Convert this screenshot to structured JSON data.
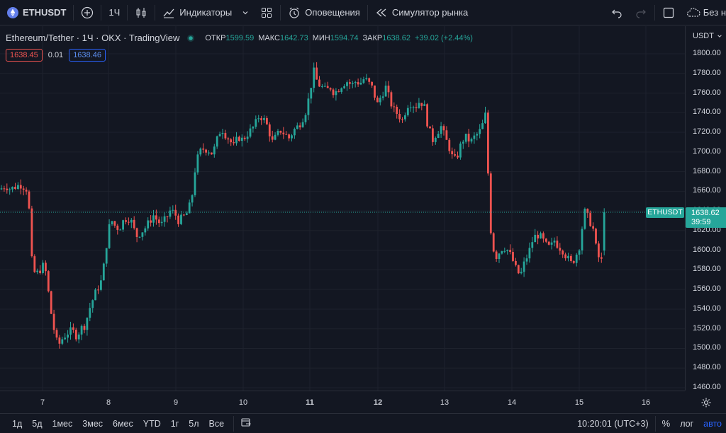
{
  "toolbar": {
    "symbol": "ETHUSDT",
    "interval": "1Ч",
    "indicators_label": "Индикаторы",
    "alerts_label": "Оповещения",
    "replay_label": "Симулятор рынка",
    "layout_label": "Без н"
  },
  "legend": {
    "title": "Ethereum/Tether · 1Ч · OKX · TradingView",
    "open_label": "ОТКР",
    "open": "1599.59",
    "high_label": "МАКС",
    "high": "1642.73",
    "low_label": "МИН",
    "low": "1594.74",
    "close_label": "ЗАКР",
    "close": "1638.62",
    "change": "+39.02 (+2.44%)"
  },
  "quotes": {
    "bid": "1638.45",
    "spread": "0.01",
    "ask": "1638.46"
  },
  "price_axis": {
    "currency": "USDT",
    "ticks": [
      "1800.00",
      "1780.00",
      "1760.00",
      "1740.00",
      "1720.00",
      "1700.00",
      "1680.00",
      "1660.00",
      "1640.00",
      "1620.00",
      "1600.00",
      "1580.00",
      "1560.00",
      "1540.00",
      "1520.00",
      "1500.00",
      "1480.00",
      "1460.00"
    ],
    "last_symbol": "ETHUSDT",
    "last_price": "1638.62",
    "countdown": "39:59"
  },
  "time_axis": {
    "ticks": [
      {
        "label": "7",
        "bold": false
      },
      {
        "label": "8",
        "bold": false
      },
      {
        "label": "9",
        "bold": false
      },
      {
        "label": "10",
        "bold": false
      },
      {
        "label": "11",
        "bold": true
      },
      {
        "label": "12",
        "bold": true
      },
      {
        "label": "13",
        "bold": false
      },
      {
        "label": "14",
        "bold": false
      },
      {
        "label": "15",
        "bold": false
      },
      {
        "label": "16",
        "bold": false
      }
    ]
  },
  "bottom_bar": {
    "ranges": [
      "1д",
      "5д",
      "1мес",
      "3мес",
      "6мес",
      "YTD",
      "1г",
      "5л",
      "Все"
    ],
    "clock": "10:20:01 (UTC+3)",
    "percent": "%",
    "log": "лог",
    "auto": "авто"
  },
  "colors": {
    "up": "#26a69a",
    "down": "#ef5350",
    "bg": "#131722",
    "accent": "#2962ff"
  },
  "chart_data": {
    "type": "candlestick",
    "symbol": "ETHUSDT",
    "interval": "1h",
    "ylim": [
      1455,
      1815
    ],
    "x_ticks": [
      "7",
      "8",
      "9",
      "10",
      "11",
      "12",
      "13",
      "14",
      "15",
      "16"
    ],
    "close_path": [
      {
        "x": 0,
        "y": 1662
      },
      {
        "x": 8,
        "y": 1666
      },
      {
        "x": 15,
        "y": 1662
      },
      {
        "x": 22,
        "y": 1665
      },
      {
        "x": 30,
        "y": 1667
      },
      {
        "x": 38,
        "y": 1662
      },
      {
        "x": 42,
        "y": 1634
      },
      {
        "x": 45,
        "y": 1588
      },
      {
        "x": 50,
        "y": 1574
      },
      {
        "x": 56,
        "y": 1580
      },
      {
        "x": 62,
        "y": 1585
      },
      {
        "x": 66,
        "y": 1573
      },
      {
        "x": 70,
        "y": 1545
      },
      {
        "x": 74,
        "y": 1528
      },
      {
        "x": 78,
        "y": 1512
      },
      {
        "x": 82,
        "y": 1502
      },
      {
        "x": 86,
        "y": 1508
      },
      {
        "x": 90,
        "y": 1512
      },
      {
        "x": 95,
        "y": 1516
      },
      {
        "x": 102,
        "y": 1518
      },
      {
        "x": 108,
        "y": 1513
      },
      {
        "x": 114,
        "y": 1520
      },
      {
        "x": 120,
        "y": 1524
      },
      {
        "x": 126,
        "y": 1540
      },
      {
        "x": 132,
        "y": 1552
      },
      {
        "x": 138,
        "y": 1562
      },
      {
        "x": 144,
        "y": 1570
      },
      {
        "x": 150,
        "y": 1605
      },
      {
        "x": 156,
        "y": 1632
      },
      {
        "x": 162,
        "y": 1625
      },
      {
        "x": 168,
        "y": 1622
      },
      {
        "x": 174,
        "y": 1630
      },
      {
        "x": 180,
        "y": 1634
      },
      {
        "x": 186,
        "y": 1628
      },
      {
        "x": 192,
        "y": 1614
      },
      {
        "x": 198,
        "y": 1618
      },
      {
        "x": 204,
        "y": 1622
      },
      {
        "x": 210,
        "y": 1628
      },
      {
        "x": 216,
        "y": 1636
      },
      {
        "x": 222,
        "y": 1630
      },
      {
        "x": 228,
        "y": 1626
      },
      {
        "x": 234,
        "y": 1632
      },
      {
        "x": 240,
        "y": 1640
      },
      {
        "x": 246,
        "y": 1638
      },
      {
        "x": 252,
        "y": 1630
      },
      {
        "x": 258,
        "y": 1633
      },
      {
        "x": 264,
        "y": 1638
      },
      {
        "x": 270,
        "y": 1650
      },
      {
        "x": 276,
        "y": 1688
      },
      {
        "x": 282,
        "y": 1700
      },
      {
        "x": 288,
        "y": 1704
      },
      {
        "x": 294,
        "y": 1702
      },
      {
        "x": 300,
        "y": 1698
      },
      {
        "x": 306,
        "y": 1712
      },
      {
        "x": 312,
        "y": 1725
      },
      {
        "x": 318,
        "y": 1718
      },
      {
        "x": 324,
        "y": 1712
      },
      {
        "x": 330,
        "y": 1705
      },
      {
        "x": 336,
        "y": 1716
      },
      {
        "x": 342,
        "y": 1712
      },
      {
        "x": 348,
        "y": 1718
      },
      {
        "x": 354,
        "y": 1722
      },
      {
        "x": 360,
        "y": 1728
      },
      {
        "x": 366,
        "y": 1738
      },
      {
        "x": 372,
        "y": 1733
      },
      {
        "x": 378,
        "y": 1725
      },
      {
        "x": 384,
        "y": 1710
      },
      {
        "x": 390,
        "y": 1716
      },
      {
        "x": 396,
        "y": 1722
      },
      {
        "x": 402,
        "y": 1718
      },
      {
        "x": 408,
        "y": 1714
      },
      {
        "x": 414,
        "y": 1722
      },
      {
        "x": 420,
        "y": 1726
      },
      {
        "x": 426,
        "y": 1733
      },
      {
        "x": 432,
        "y": 1743
      },
      {
        "x": 437,
        "y": 1760
      },
      {
        "x": 442,
        "y": 1783
      },
      {
        "x": 448,
        "y": 1770
      },
      {
        "x": 454,
        "y": 1766
      },
      {
        "x": 460,
        "y": 1762
      },
      {
        "x": 466,
        "y": 1766
      },
      {
        "x": 472,
        "y": 1760
      },
      {
        "x": 478,
        "y": 1765
      },
      {
        "x": 484,
        "y": 1770
      },
      {
        "x": 490,
        "y": 1772
      },
      {
        "x": 496,
        "y": 1768
      },
      {
        "x": 502,
        "y": 1772
      },
      {
        "x": 508,
        "y": 1770
      },
      {
        "x": 514,
        "y": 1775
      },
      {
        "x": 520,
        "y": 1770
      },
      {
        "x": 526,
        "y": 1764
      },
      {
        "x": 532,
        "y": 1748
      },
      {
        "x": 538,
        "y": 1758
      },
      {
        "x": 544,
        "y": 1766
      },
      {
        "x": 550,
        "y": 1752
      },
      {
        "x": 556,
        "y": 1742
      },
      {
        "x": 562,
        "y": 1738
      },
      {
        "x": 568,
        "y": 1732
      },
      {
        "x": 574,
        "y": 1748
      },
      {
        "x": 580,
        "y": 1750
      },
      {
        "x": 586,
        "y": 1746
      },
      {
        "x": 592,
        "y": 1752
      },
      {
        "x": 598,
        "y": 1748
      },
      {
        "x": 604,
        "y": 1725
      },
      {
        "x": 610,
        "y": 1712
      },
      {
        "x": 616,
        "y": 1720
      },
      {
        "x": 622,
        "y": 1726
      },
      {
        "x": 628,
        "y": 1714
      },
      {
        "x": 634,
        "y": 1704
      },
      {
        "x": 640,
        "y": 1690
      },
      {
        "x": 646,
        "y": 1698
      },
      {
        "x": 652,
        "y": 1712
      },
      {
        "x": 658,
        "y": 1715
      },
      {
        "x": 664,
        "y": 1710
      },
      {
        "x": 670,
        "y": 1716
      },
      {
        "x": 676,
        "y": 1720
      },
      {
        "x": 682,
        "y": 1730
      },
      {
        "x": 686,
        "y": 1742
      },
      {
        "x": 688,
        "y": 1690
      },
      {
        "x": 690,
        "y": 1632
      },
      {
        "x": 694,
        "y": 1612
      },
      {
        "x": 698,
        "y": 1592
      },
      {
        "x": 704,
        "y": 1598
      },
      {
        "x": 710,
        "y": 1604
      },
      {
        "x": 716,
        "y": 1600
      },
      {
        "x": 722,
        "y": 1592
      },
      {
        "x": 728,
        "y": 1580
      },
      {
        "x": 734,
        "y": 1574
      },
      {
        "x": 740,
        "y": 1588
      },
      {
        "x": 746,
        "y": 1598
      },
      {
        "x": 752,
        "y": 1612
      },
      {
        "x": 758,
        "y": 1616
      },
      {
        "x": 764,
        "y": 1612
      },
      {
        "x": 770,
        "y": 1605
      },
      {
        "x": 776,
        "y": 1602
      },
      {
        "x": 782,
        "y": 1610
      },
      {
        "x": 788,
        "y": 1604
      },
      {
        "x": 794,
        "y": 1600
      },
      {
        "x": 800,
        "y": 1592
      },
      {
        "x": 806,
        "y": 1586
      },
      {
        "x": 812,
        "y": 1594
      },
      {
        "x": 818,
        "y": 1606
      },
      {
        "x": 824,
        "y": 1640
      },
      {
        "x": 830,
        "y": 1632
      },
      {
        "x": 836,
        "y": 1624
      },
      {
        "x": 842,
        "y": 1596
      },
      {
        "x": 848,
        "y": 1588
      },
      {
        "x": 852,
        "y": 1600
      },
      {
        "x": 856,
        "y": 1638.62
      }
    ]
  }
}
